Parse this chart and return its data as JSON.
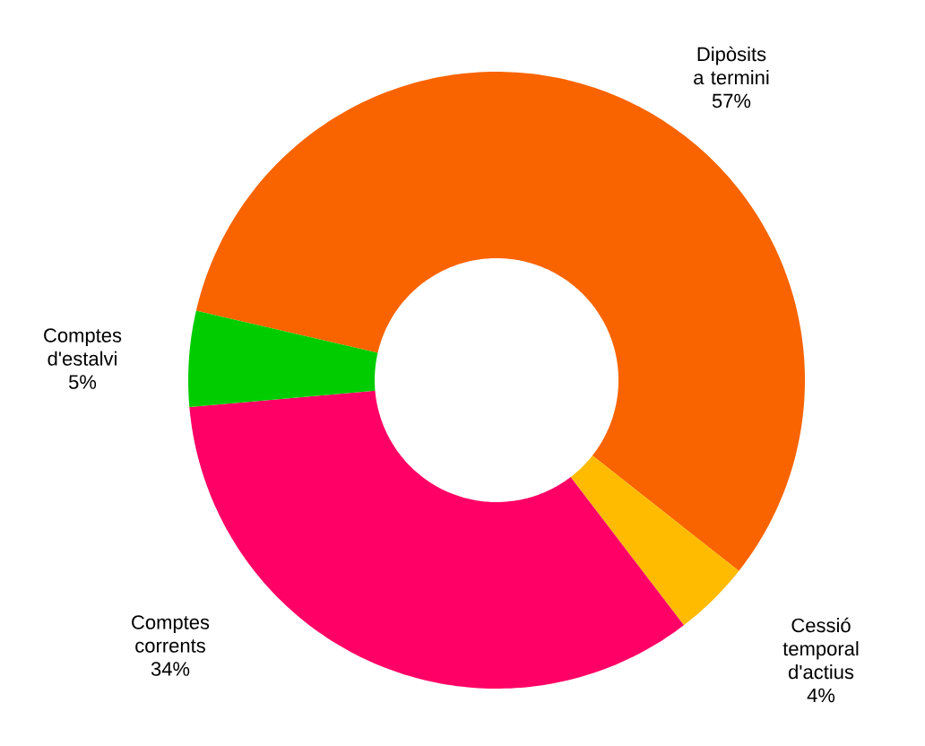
{
  "chart_data": {
    "type": "donut",
    "categories": [
      "Dipòsits a termini",
      "Cessió temporal d'actius",
      "Comptes corrents",
      "Comptes d'estalvi"
    ],
    "values": [
      57,
      4,
      34,
      5
    ],
    "colors": [
      "#f96400",
      "#ffbb00",
      "#ff0066",
      "#00cc00"
    ],
    "value_labels": [
      "57%",
      "4%",
      "34%",
      "5%"
    ]
  }
}
